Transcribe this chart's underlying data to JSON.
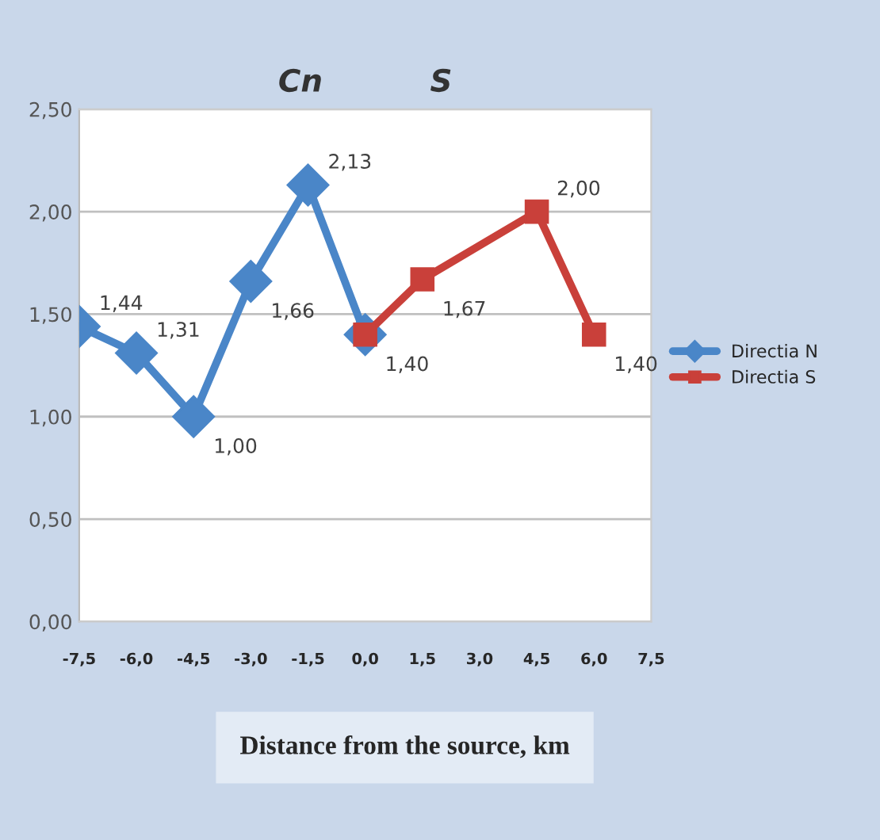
{
  "chart_data": {
    "type": "line",
    "title": "Cn          S",
    "xlabel": "Distance from the source, km",
    "xlim": [
      -7.5,
      7.5
    ],
    "xticks": [
      {
        "value": -7.5,
        "label": "-7,5"
      },
      {
        "value": -6.0,
        "label": "-6,0"
      },
      {
        "value": -4.5,
        "label": "-4,5"
      },
      {
        "value": -3.0,
        "label": "-3,0"
      },
      {
        "value": -1.5,
        "label": "-1,5"
      },
      {
        "value": 0,
        "label": "0,0"
      },
      {
        "value": 1.5,
        "label": "1,5"
      },
      {
        "value": 3.0,
        "label": "3,0"
      },
      {
        "value": 4.5,
        "label": "4,5"
      },
      {
        "value": 6.0,
        "label": "6,0"
      },
      {
        "value": 7.5,
        "label": "7,5"
      }
    ],
    "ylim": [
      0,
      2.5
    ],
    "yticks": [
      {
        "value": 0,
        "label": "0,00"
      },
      {
        "value": 0.5,
        "label": "0,50"
      },
      {
        "value": 1.0,
        "label": "1,00"
      },
      {
        "value": 1.5,
        "label": "1,50"
      },
      {
        "value": 2.0,
        "label": "2,00"
      },
      {
        "value": 2.5,
        "label": "2,50"
      }
    ],
    "grid": "y",
    "legend": "right",
    "series": [
      {
        "name": "Directia N",
        "color": "#4a86c8",
        "marker": "diamond",
        "x": [
          -7.5,
          -6.0,
          -4.5,
          -3.0,
          -1.5,
          0
        ],
        "values": [
          1.44,
          1.31,
          1.0,
          1.66,
          2.13,
          1.4
        ],
        "value_labels": [
          "1,44",
          "1,31",
          "1,00",
          "1,66",
          "2,13",
          null
        ]
      },
      {
        "name": "Directia S",
        "color": "#c9403a",
        "marker": "square",
        "x": [
          0,
          1.5,
          4.5,
          6.0
        ],
        "values": [
          1.4,
          1.67,
          2.0,
          1.4
        ],
        "value_labels": [
          "1,40",
          "1,67",
          "2,00",
          "1,40"
        ]
      }
    ]
  }
}
